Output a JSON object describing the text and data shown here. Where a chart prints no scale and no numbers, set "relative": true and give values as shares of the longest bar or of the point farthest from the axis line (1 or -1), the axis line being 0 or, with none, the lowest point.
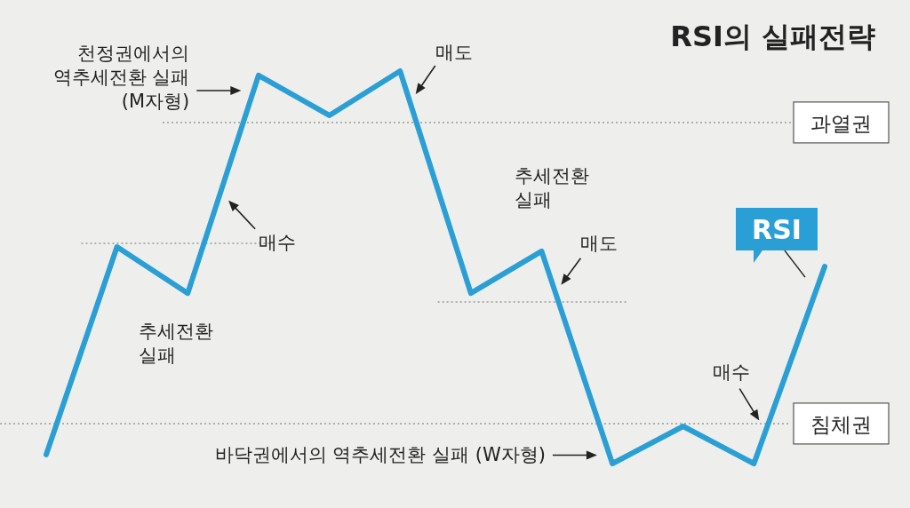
{
  "chart_data": {
    "type": "line",
    "title": "RSI의 실패전략",
    "relative": true,
    "marker": "none",
    "categories": [
      null,
      null,
      null,
      null,
      null,
      null,
      null,
      null,
      null,
      null,
      null,
      null
    ],
    "series": [
      {
        "name": "RSI",
        "color": "#2a9fd6",
        "values": [
          0.023,
          0.552,
          0.434,
          0.989,
          0.887,
          1,
          0.434,
          0.541,
          0,
          0.095,
          0,
          0.502
        ]
      }
    ],
    "ref_lines": [
      {
        "axis": "y",
        "value": 0.869,
        "label": "과열권",
        "color": "#9a9a9a",
        "line_style": "dotted"
      },
      {
        "axis": "y",
        "value": 0.102,
        "label": "침체권",
        "color": "#9a9a9a",
        "line_style": "dotted"
      },
      {
        "axis": "y",
        "value": 0.561,
        "color": "#9a9a9a",
        "line_style": "dotted"
      },
      {
        "axis": "y",
        "value": 0.412,
        "color": "#9a9a9a",
        "line_style": "dotted"
      }
    ],
    "annotations": [
      "천정권에서의\n역추세전환 실패\n(M자형)",
      "매도",
      "매수",
      "추세전환\n실패",
      "추세전환\n실패",
      "매도",
      "매수",
      "바닥권에서의 역추세전환 실패 (W자형)"
    ]
  }
}
